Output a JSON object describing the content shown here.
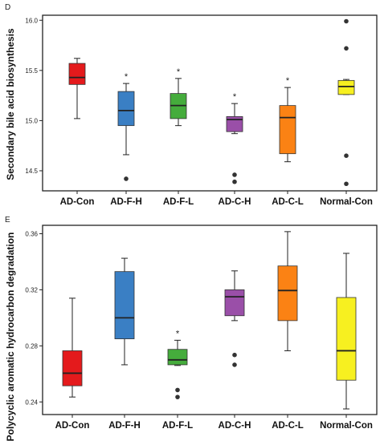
{
  "chart_data": [
    {
      "type": "box",
      "panel": "D",
      "ylabel": "Secondary bile acid biosynthesis",
      "ylim": [
        14.3,
        16.05
      ],
      "yticks": [
        14.5,
        15.0,
        15.5,
        16.0
      ],
      "ytick_labels": [
        "14.5",
        "15.0",
        "15.5",
        "16.0"
      ],
      "categories": [
        "AD-Con",
        "AD-F-H",
        "AD-F-L",
        "AD-C-H",
        "AD-C-L",
        "Normal-Con"
      ],
      "colors": [
        "#e41a1c",
        "#3a7fc4",
        "#45ac3c",
        "#9a4fa8",
        "#fb8214",
        "#f7f020"
      ],
      "boxes": [
        {
          "min": 15.02,
          "q1": 15.36,
          "median": 15.43,
          "q3": 15.57,
          "max": 15.62,
          "outliers": [],
          "sig": ""
        },
        {
          "min": 14.66,
          "q1": 14.95,
          "median": 15.1,
          "q3": 15.29,
          "max": 15.37,
          "outliers": [
            14.42
          ],
          "sig": "*"
        },
        {
          "min": 14.95,
          "q1": 15.02,
          "median": 15.15,
          "q3": 15.27,
          "max": 15.42,
          "outliers": [],
          "sig": "*"
        },
        {
          "min": 14.87,
          "q1": 14.89,
          "median": 15.01,
          "q3": 15.04,
          "max": 15.17,
          "outliers": [
            14.46,
            14.39
          ],
          "sig": "*"
        },
        {
          "min": 14.59,
          "q1": 14.67,
          "median": 15.03,
          "q3": 15.15,
          "max": 15.33,
          "outliers": [],
          "sig": "*"
        },
        {
          "min": 15.26,
          "q1": 15.26,
          "median": 15.34,
          "q3": 15.4,
          "max": 15.41,
          "outliers": [
            15.99,
            15.72,
            14.65,
            14.37
          ],
          "sig": ""
        }
      ]
    },
    {
      "type": "box",
      "panel": "E",
      "ylabel": "Polycyclic aromatic hydrocarbon degradation",
      "ylim": [
        0.231,
        0.366
      ],
      "yticks": [
        0.24,
        0.28,
        0.32,
        0.36
      ],
      "ytick_labels": [
        "0.24",
        "0.28",
        "0.32",
        "0.36"
      ],
      "categories": [
        "AD-Con",
        "AD-F-H",
        "AD-F-L",
        "AD-C-H",
        "AD-C-L",
        "Normal-Con"
      ],
      "colors": [
        "#e41a1c",
        "#3a7fc4",
        "#45ac3c",
        "#9a4fa8",
        "#fb8214",
        "#f7f020"
      ],
      "boxes": [
        {
          "min": 0.2435,
          "q1": 0.2515,
          "median": 0.2605,
          "q3": 0.2765,
          "max": 0.314,
          "outliers": [],
          "sig": ""
        },
        {
          "min": 0.2665,
          "q1": 0.285,
          "median": 0.3,
          "q3": 0.333,
          "max": 0.3425,
          "outliers": [],
          "sig": ""
        },
        {
          "min": 0.266,
          "q1": 0.2665,
          "median": 0.27,
          "q3": 0.2775,
          "max": 0.284,
          "outliers": [
            0.2485,
            0.2435
          ],
          "sig": "*"
        },
        {
          "min": 0.298,
          "q1": 0.3015,
          "median": 0.315,
          "q3": 0.32,
          "max": 0.3335,
          "outliers": [
            0.2735,
            0.2665
          ],
          "sig": ""
        },
        {
          "min": 0.2765,
          "q1": 0.298,
          "median": 0.3195,
          "q3": 0.337,
          "max": 0.3615,
          "outliers": [],
          "sig": ""
        },
        {
          "min": 0.235,
          "q1": 0.2555,
          "median": 0.2765,
          "q3": 0.3145,
          "max": 0.346,
          "outliers": [],
          "sig": ""
        }
      ]
    }
  ]
}
